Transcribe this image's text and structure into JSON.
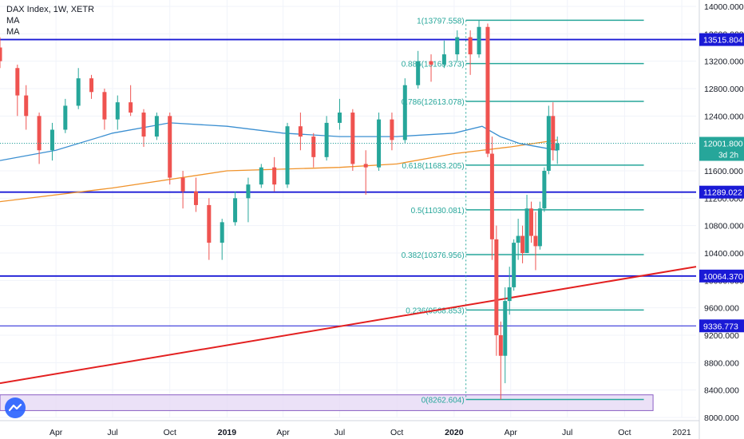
{
  "header": {
    "title": "DAX Index, 1W, XETR",
    "indicators": [
      "MA",
      "MA"
    ]
  },
  "price_tag": {
    "value": "12001.800",
    "countdown": "3d 2h"
  },
  "colors": {
    "up": "#26a69a",
    "down": "#ef5350",
    "fib": "#26a69a",
    "level": "#1a1ad6",
    "trend": "#e32020",
    "ma_fast": "#3b8fd1",
    "ma_slow": "#f0932b",
    "zone_fill": "#e6d9f5",
    "zone_border": "#8a5fc4"
  },
  "chart_data": {
    "type": "candlestick",
    "title": "DAX Index, 1W, XETR",
    "xlabel": "",
    "ylabel": "",
    "ylim": [
      8000,
      14000
    ],
    "y_ticks": [
      8000,
      8400,
      8800,
      9200,
      9600,
      10000,
      10400,
      10800,
      11200,
      11600,
      12000,
      12400,
      12800,
      13200,
      13600,
      14000
    ],
    "y_tick_labels": [
      "8000.000",
      "8400.000",
      "8800.000",
      "9200.000",
      "9600.000",
      "10000.000",
      "10400.000",
      "10800.000",
      "11200.000",
      "11600.000",
      "12000.000",
      "12400.000",
      "12800.000",
      "13200.000",
      "13600.000",
      "14000.000"
    ],
    "x_ticks": [
      "Apr",
      "Jul",
      "Oct",
      "2019",
      "Apr",
      "Jul",
      "Oct",
      "2020",
      "Apr",
      "Jul",
      "Oct",
      "2021"
    ],
    "bold_x_ticks": [
      "2019",
      "2020"
    ],
    "x_tick_dates": [
      "2018-04-01",
      "2018-07-01",
      "2018-10-01",
      "2019-01-01",
      "2019-04-01",
      "2019-07-01",
      "2019-10-01",
      "2020-01-01",
      "2020-04-01",
      "2020-07-01",
      "2020-10-01",
      "2021-01-01"
    ],
    "x_range": [
      "2018-01-01",
      "2021-01-24"
    ],
    "horizontal_levels": [
      {
        "value": 13515.804,
        "label": "13515.804"
      },
      {
        "value": 11289.022,
        "label": "11289.022"
      },
      {
        "value": 10064.37,
        "label": "10064.370"
      },
      {
        "value": 9336.773,
        "label": "9336.773"
      }
    ],
    "fib_levels": [
      {
        "ratio": "1",
        "value": 13797.558,
        "label": "1(13797.558)"
      },
      {
        "ratio": "0.886",
        "value": 13165.373,
        "label": "0.886(13165.373)"
      },
      {
        "ratio": "0.786",
        "value": 12613.078,
        "label": "0.786(12613.078)"
      },
      {
        "ratio": "0.618",
        "value": 11683.205,
        "label": "0.618(11683.205)"
      },
      {
        "ratio": "0.5",
        "value": 11030.081,
        "label": "0.5(11030.081)"
      },
      {
        "ratio": "0.382",
        "value": 10376.956,
        "label": "0.382(10376.956)"
      },
      {
        "ratio": "0.236",
        "value": 9568.853,
        "label": "0.236(9568.853)"
      },
      {
        "ratio": "0",
        "value": 8262.604,
        "label": "0(8262.604)"
      }
    ],
    "fib_range": [
      "2020-01-20",
      "2020-11-01"
    ],
    "trendline": {
      "start": {
        "date": "2018-01-01",
        "value": 8500
      },
      "end": {
        "date": "2021-01-24",
        "value": 10200
      }
    },
    "zone": {
      "start": "2018-01-01",
      "end": "2021-01-01",
      "low": 8100,
      "high": 8330
    },
    "current_price": 12001.8,
    "candles": [
      {
        "date": "2018-01-01",
        "open": 13400,
        "high": 13550,
        "low": 13100,
        "close": 13200
      },
      {
        "date": "2018-01-29",
        "open": 13100,
        "high": 13150,
        "low": 12400,
        "close": 12700
      },
      {
        "date": "2018-02-12",
        "open": 12700,
        "high": 12850,
        "low": 12200,
        "close": 12400
      },
      {
        "date": "2018-03-05",
        "open": 12400,
        "high": 12450,
        "low": 11700,
        "close": 11900
      },
      {
        "date": "2018-03-26",
        "open": 11900,
        "high": 12300,
        "low": 11750,
        "close": 12200
      },
      {
        "date": "2018-04-16",
        "open": 12200,
        "high": 12650,
        "low": 12150,
        "close": 12550
      },
      {
        "date": "2018-05-07",
        "open": 12550,
        "high": 13100,
        "low": 12500,
        "close": 12950
      },
      {
        "date": "2018-05-28",
        "open": 12950,
        "high": 13000,
        "low": 12650,
        "close": 12750
      },
      {
        "date": "2018-06-18",
        "open": 12750,
        "high": 12800,
        "low": 12200,
        "close": 12350
      },
      {
        "date": "2018-07-09",
        "open": 12350,
        "high": 12700,
        "low": 12200,
        "close": 12600
      },
      {
        "date": "2018-07-30",
        "open": 12600,
        "high": 12850,
        "low": 12400,
        "close": 12450
      },
      {
        "date": "2018-08-20",
        "open": 12450,
        "high": 12500,
        "low": 11950,
        "close": 12100
      },
      {
        "date": "2018-09-10",
        "open": 12100,
        "high": 12450,
        "low": 12050,
        "close": 12400
      },
      {
        "date": "2018-10-01",
        "open": 12400,
        "high": 12450,
        "low": 11400,
        "close": 11500
      },
      {
        "date": "2018-10-22",
        "open": 11500,
        "high": 11600,
        "low": 11050,
        "close": 11300
      },
      {
        "date": "2018-11-12",
        "open": 11300,
        "high": 11500,
        "low": 11000,
        "close": 11100
      },
      {
        "date": "2018-12-03",
        "open": 11100,
        "high": 11200,
        "low": 10300,
        "close": 10550
      },
      {
        "date": "2018-12-24",
        "open": 10550,
        "high": 10900,
        "low": 10300,
        "close": 10850
      },
      {
        "date": "2019-01-14",
        "open": 10850,
        "high": 11300,
        "low": 10800,
        "close": 11200
      },
      {
        "date": "2019-02-04",
        "open": 11200,
        "high": 11500,
        "low": 10850,
        "close": 11400
      },
      {
        "date": "2019-02-25",
        "open": 11400,
        "high": 11700,
        "low": 11350,
        "close": 11650
      },
      {
        "date": "2019-03-18",
        "open": 11650,
        "high": 11800,
        "low": 11300,
        "close": 11400
      },
      {
        "date": "2019-04-08",
        "open": 11400,
        "high": 12300,
        "low": 11350,
        "close": 12250
      },
      {
        "date": "2019-04-29",
        "open": 12250,
        "high": 12450,
        "low": 11900,
        "close": 12100
      },
      {
        "date": "2019-05-20",
        "open": 12100,
        "high": 12150,
        "low": 11650,
        "close": 11800
      },
      {
        "date": "2019-06-10",
        "open": 11800,
        "high": 12400,
        "low": 11750,
        "close": 12300
      },
      {
        "date": "2019-07-01",
        "open": 12300,
        "high": 12650,
        "low": 12200,
        "close": 12450
      },
      {
        "date": "2019-07-22",
        "open": 12450,
        "high": 12500,
        "low": 11600,
        "close": 11700
      },
      {
        "date": "2019-08-12",
        "open": 11700,
        "high": 11900,
        "low": 11250,
        "close": 11650
      },
      {
        "date": "2019-09-02",
        "open": 11650,
        "high": 12450,
        "low": 11600,
        "close": 12350
      },
      {
        "date": "2019-09-23",
        "open": 12350,
        "high": 12450,
        "low": 11900,
        "close": 12050
      },
      {
        "date": "2019-10-14",
        "open": 12050,
        "high": 12950,
        "low": 12000,
        "close": 12850
      },
      {
        "date": "2019-11-04",
        "open": 12850,
        "high": 13350,
        "low": 12800,
        "close": 13200
      },
      {
        "date": "2019-11-25",
        "open": 13200,
        "high": 13300,
        "low": 12900,
        "close": 13150
      },
      {
        "date": "2019-12-16",
        "open": 13150,
        "high": 13500,
        "low": 13100,
        "close": 13300
      },
      {
        "date": "2020-01-06",
        "open": 13300,
        "high": 13650,
        "low": 13200,
        "close": 13550
      },
      {
        "date": "2020-01-27",
        "open": 13550,
        "high": 13650,
        "low": 13000,
        "close": 13300
      },
      {
        "date": "2020-02-10",
        "open": 13300,
        "high": 13800,
        "low": 13250,
        "close": 13700
      },
      {
        "date": "2020-02-24",
        "open": 13700,
        "high": 13750,
        "low": 11800,
        "close": 11850
      },
      {
        "date": "2020-03-02",
        "open": 11850,
        "high": 12100,
        "low": 10300,
        "close": 10600
      },
      {
        "date": "2020-03-09",
        "open": 10600,
        "high": 10800,
        "low": 8900,
        "close": 9200
      },
      {
        "date": "2020-03-16",
        "open": 9200,
        "high": 9400,
        "low": 8262,
        "close": 8900
      },
      {
        "date": "2020-03-23",
        "open": 8900,
        "high": 9900,
        "low": 8500,
        "close": 9700
      },
      {
        "date": "2020-03-30",
        "open": 9700,
        "high": 10200,
        "low": 9500,
        "close": 9900
      },
      {
        "date": "2020-04-06",
        "open": 9900,
        "high": 10600,
        "low": 9850,
        "close": 10550
      },
      {
        "date": "2020-04-13",
        "open": 10550,
        "high": 10900,
        "low": 10300,
        "close": 10650
      },
      {
        "date": "2020-04-20",
        "open": 10650,
        "high": 10800,
        "low": 10250,
        "close": 10400
      },
      {
        "date": "2020-04-27",
        "open": 10400,
        "high": 11250,
        "low": 10400,
        "close": 11050
      },
      {
        "date": "2020-05-04",
        "open": 11050,
        "high": 11150,
        "low": 10550,
        "close": 10650
      },
      {
        "date": "2020-05-11",
        "open": 10650,
        "high": 11000,
        "low": 10150,
        "close": 10500
      },
      {
        "date": "2020-05-18",
        "open": 10500,
        "high": 11150,
        "low": 10450,
        "close": 11050
      },
      {
        "date": "2020-05-25",
        "open": 11050,
        "high": 11650,
        "low": 11000,
        "close": 11600
      },
      {
        "date": "2020-06-01",
        "open": 11600,
        "high": 12550,
        "low": 11550,
        "close": 12400
      },
      {
        "date": "2020-06-08",
        "open": 12400,
        "high": 12600,
        "low": 11750,
        "close": 11900
      },
      {
        "date": "2020-06-15",
        "open": 11900,
        "high": 12100,
        "low": 11700,
        "close": 12000
      }
    ],
    "ma_fast": [
      {
        "date": "2018-01-01",
        "value": 11750
      },
      {
        "date": "2018-04-01",
        "value": 11900
      },
      {
        "date": "2018-07-01",
        "value": 12150
      },
      {
        "date": "2018-10-01",
        "value": 12300
      },
      {
        "date": "2019-01-01",
        "value": 12250
      },
      {
        "date": "2019-04-01",
        "value": 12150
      },
      {
        "date": "2019-07-01",
        "value": 12100
      },
      {
        "date": "2019-10-01",
        "value": 12100
      },
      {
        "date": "2020-01-01",
        "value": 12150
      },
      {
        "date": "2020-02-15",
        "value": 12250
      },
      {
        "date": "2020-03-15",
        "value": 12100
      },
      {
        "date": "2020-04-15",
        "value": 12000
      },
      {
        "date": "2020-06-15",
        "value": 11900
      }
    ],
    "ma_slow": [
      {
        "date": "2018-01-01",
        "value": 11150
      },
      {
        "date": "2018-07-01",
        "value": 11350
      },
      {
        "date": "2019-01-01",
        "value": 11600
      },
      {
        "date": "2019-07-01",
        "value": 11650
      },
      {
        "date": "2019-10-01",
        "value": 11700
      },
      {
        "date": "2020-01-01",
        "value": 11850
      },
      {
        "date": "2020-04-01",
        "value": 11950
      },
      {
        "date": "2020-06-15",
        "value": 12050
      }
    ]
  }
}
